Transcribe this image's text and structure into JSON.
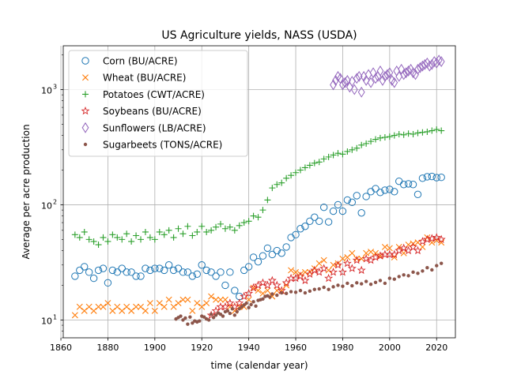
{
  "chart_data": {
    "type": "scatter",
    "title": "US Agriculture yields, NASS (USDA)",
    "xlabel": "time (calendar year)",
    "ylabel": "Average per acre production",
    "yscale": "log",
    "xlim": [
      1861,
      2028
    ],
    "ylim": [
      7,
      2400
    ],
    "grid": true,
    "legend_position": "top-left",
    "x_ticks": [
      1860,
      1880,
      1900,
      1920,
      1940,
      1960,
      1980,
      2000,
      2020
    ],
    "x_tick_labels": [
      "1860",
      "1880",
      "1900",
      "1920",
      "1940",
      "1960",
      "1980",
      "2000",
      "2020"
    ],
    "y_ticks": [
      10,
      100,
      1000
    ],
    "y_tick_labels": [
      "10",
      "10",
      "10"
    ],
    "y_tick_exponents": [
      "1",
      "2",
      "3"
    ],
    "series": [
      {
        "name": "Corn (BU/ACRE)",
        "marker": "circle",
        "color": "#1f77b4",
        "x": [
          1866,
          1868,
          1870,
          1872,
          1874,
          1876,
          1878,
          1880,
          1882,
          1884,
          1886,
          1888,
          1890,
          1892,
          1894,
          1896,
          1898,
          1900,
          1902,
          1904,
          1906,
          1908,
          1910,
          1912,
          1914,
          1916,
          1918,
          1920,
          1922,
          1924,
          1926,
          1928,
          1930,
          1932,
          1934,
          1936,
          1938,
          1940,
          1942,
          1944,
          1946,
          1948,
          1950,
          1952,
          1954,
          1956,
          1958,
          1960,
          1962,
          1964,
          1966,
          1968,
          1970,
          1972,
          1974,
          1976,
          1978,
          1980,
          1982,
          1984,
          1986,
          1988,
          1990,
          1992,
          1994,
          1996,
          1998,
          2000,
          2002,
          2004,
          2006,
          2008,
          2010,
          2012,
          2014,
          2016,
          2018,
          2020,
          2022
        ],
        "values": [
          24,
          27,
          29,
          26,
          23,
          27,
          28,
          21,
          27,
          26,
          28,
          26,
          26,
          24,
          24,
          28,
          27,
          28,
          28,
          27,
          30,
          27,
          28,
          26,
          26,
          24,
          25,
          30,
          27,
          26,
          24,
          26,
          20,
          26,
          18,
          16,
          27,
          29,
          35,
          32,
          36,
          42,
          37,
          40,
          38,
          43,
          52,
          55,
          62,
          65,
          72,
          78,
          72,
          95,
          71,
          88,
          100,
          88,
          110,
          105,
          120,
          85,
          118,
          130,
          138,
          128,
          134,
          136,
          130,
          160,
          150,
          152,
          150,
          123,
          170,
          175,
          176,
          172,
          173
        ]
      },
      {
        "name": "Wheat (BU/ACRE)",
        "marker": "x",
        "color": "#ff7f0e",
        "x": [
          1866,
          1868,
          1870,
          1872,
          1874,
          1876,
          1878,
          1880,
          1882,
          1884,
          1886,
          1888,
          1890,
          1892,
          1894,
          1896,
          1898,
          1900,
          1902,
          1904,
          1906,
          1908,
          1910,
          1912,
          1914,
          1916,
          1918,
          1920,
          1922,
          1924,
          1926,
          1928,
          1930,
          1932,
          1934,
          1936,
          1938,
          1940,
          1942,
          1944,
          1946,
          1948,
          1950,
          1952,
          1954,
          1956,
          1958,
          1960,
          1962,
          1964,
          1966,
          1968,
          1970,
          1972,
          1974,
          1976,
          1978,
          1980,
          1982,
          1984,
          1986,
          1988,
          1990,
          1992,
          1994,
          1996,
          1998,
          2000,
          2002,
          2004,
          2006,
          2008,
          2010,
          2012,
          2014,
          2016,
          2018,
          2020,
          2022
        ],
        "values": [
          11,
          13,
          12,
          13,
          12,
          13,
          13,
          14,
          12,
          13,
          12,
          13,
          12,
          13,
          13,
          12,
          14,
          12,
          14,
          13,
          15,
          13,
          14,
          15,
          15,
          12,
          14,
          13,
          14,
          16,
          15,
          15,
          15,
          13,
          12,
          13,
          13,
          15,
          19,
          18,
          17,
          18,
          16,
          18,
          18,
          20,
          27,
          26,
          25,
          26,
          26,
          28,
          31,
          33,
          27,
          30,
          31,
          34,
          35,
          38,
          34,
          34,
          38,
          39,
          38,
          36,
          43,
          42,
          35,
          43,
          38,
          45,
          46,
          47,
          43,
          52,
          47,
          49,
          47
        ]
      },
      {
        "name": "Potatoes (CWT/ACRE)",
        "marker": "plus",
        "color": "#2ca02c",
        "x": [
          1866,
          1868,
          1870,
          1872,
          1874,
          1876,
          1878,
          1880,
          1882,
          1884,
          1886,
          1888,
          1890,
          1892,
          1894,
          1896,
          1898,
          1900,
          1902,
          1904,
          1906,
          1908,
          1910,
          1912,
          1914,
          1916,
          1918,
          1920,
          1922,
          1924,
          1926,
          1928,
          1930,
          1932,
          1934,
          1936,
          1938,
          1940,
          1942,
          1944,
          1946,
          1948,
          1950,
          1952,
          1954,
          1956,
          1958,
          1960,
          1962,
          1964,
          1966,
          1968,
          1970,
          1972,
          1974,
          1976,
          1978,
          1980,
          1982,
          1984,
          1986,
          1988,
          1990,
          1992,
          1994,
          1996,
          1998,
          2000,
          2002,
          2004,
          2006,
          2008,
          2010,
          2012,
          2014,
          2016,
          2018,
          2020,
          2022
        ],
        "values": [
          55,
          52,
          58,
          50,
          48,
          45,
          52,
          48,
          55,
          52,
          50,
          56,
          48,
          54,
          50,
          58,
          52,
          50,
          58,
          55,
          60,
          52,
          62,
          56,
          65,
          54,
          58,
          65,
          58,
          60,
          64,
          68,
          62,
          64,
          60,
          66,
          70,
          72,
          80,
          78,
          90,
          110,
          140,
          150,
          155,
          170,
          180,
          190,
          200,
          210,
          220,
          230,
          235,
          250,
          260,
          270,
          280,
          275,
          290,
          300,
          310,
          330,
          340,
          355,
          370,
          380,
          385,
          390,
          400,
          410,
          405,
          415,
          410,
          420,
          425,
          430,
          440,
          450,
          440
        ]
      },
      {
        "name": "Soybeans (BU/ACRE)",
        "marker": "star",
        "color": "#d62728",
        "x": [
          1924,
          1926,
          1928,
          1930,
          1932,
          1934,
          1936,
          1938,
          1940,
          1942,
          1944,
          1946,
          1948,
          1950,
          1952,
          1954,
          1956,
          1958,
          1960,
          1962,
          1964,
          1966,
          1968,
          1970,
          1972,
          1974,
          1976,
          1978,
          1980,
          1982,
          1984,
          1986,
          1988,
          1990,
          1992,
          1994,
          1996,
          1998,
          2000,
          2002,
          2004,
          2006,
          2008,
          2010,
          2012,
          2014,
          2016,
          2018,
          2020,
          2022
        ],
        "values": [
          11,
          12,
          13,
          13,
          14,
          13,
          14,
          16,
          17,
          19,
          20,
          21,
          20,
          22,
          20,
          18,
          21,
          23,
          23,
          24,
          22,
          25,
          27,
          26,
          28,
          23,
          26,
          30,
          26,
          31,
          28,
          33,
          27,
          34,
          33,
          35,
          36,
          37,
          37,
          37,
          40,
          42,
          40,
          43,
          40,
          48,
          50,
          51,
          52,
          50
        ]
      },
      {
        "name": "Sunflowers (LB/ACRE)",
        "marker": "diamond",
        "color": "#9467bd",
        "x": [
          1976,
          1977,
          1978,
          1979,
          1980,
          1981,
          1982,
          1983,
          1984,
          1985,
          1986,
          1987,
          1988,
          1989,
          1990,
          1991,
          1992,
          1993,
          1994,
          1995,
          1996,
          1997,
          1998,
          1999,
          2000,
          2001,
          2002,
          2003,
          2004,
          2005,
          2006,
          2007,
          2008,
          2009,
          2010,
          2011,
          2012,
          2013,
          2014,
          2015,
          2016,
          2017,
          2018,
          2019,
          2020,
          2021,
          2022
        ],
        "values": [
          1100,
          1200,
          1300,
          1250,
          1100,
          1150,
          1200,
          1050,
          1180,
          1000,
          1250,
          1300,
          950,
          1300,
          1200,
          1350,
          1150,
          1400,
          1250,
          1300,
          1450,
          1200,
          1300,
          1350,
          1400,
          1200,
          1150,
          1450,
          1300,
          1500,
          1350,
          1400,
          1450,
          1500,
          1400,
          1350,
          1500,
          1550,
          1600,
          1650,
          1700,
          1600,
          1650,
          1750,
          1700,
          1800,
          1750
        ]
      },
      {
        "name": "Sugarbeets (TONS/ACRE)",
        "marker": "dot",
        "color": "#8c564b",
        "x": [
          1909,
          1910,
          1911,
          1912,
          1913,
          1914,
          1915,
          1916,
          1917,
          1918,
          1919,
          1920,
          1921,
          1922,
          1923,
          1924,
          1925,
          1926,
          1927,
          1928,
          1929,
          1930,
          1931,
          1932,
          1933,
          1934,
          1935,
          1936,
          1937,
          1938,
          1939,
          1940,
          1941,
          1942,
          1943,
          1944,
          1945,
          1946,
          1947,
          1948,
          1949,
          1950,
          1952,
          1954,
          1956,
          1958,
          1960,
          1962,
          1964,
          1966,
          1968,
          1970,
          1972,
          1974,
          1976,
          1978,
          1980,
          1982,
          1984,
          1986,
          1988,
          1990,
          1992,
          1994,
          1996,
          1998,
          2000,
          2002,
          2004,
          2006,
          2008,
          2010,
          2012,
          2014,
          2016,
          2018,
          2020,
          2022
        ],
        "values": [
          10.2,
          10.5,
          10.8,
          10.0,
          10.4,
          9.2,
          10.6,
          9.4,
          9.8,
          9.6,
          9.8,
          10.8,
          10.6,
          10.2,
          10.0,
          11.2,
          10.5,
          11.0,
          11.5,
          11.2,
          10.8,
          11.8,
          12.0,
          11.4,
          12.5,
          11.0,
          11.8,
          12.5,
          13.0,
          13.5,
          14.0,
          12.8,
          13.6,
          14.4,
          13.2,
          14.8,
          15.0,
          15.2,
          16.0,
          16.2,
          15.8,
          16.8,
          16.4,
          17.2,
          17.0,
          17.6,
          17.4,
          18.0,
          17.2,
          17.8,
          18.4,
          18.6,
          19.2,
          18.4,
          19.4,
          20.0,
          19.6,
          20.8,
          19.8,
          21.0,
          20.6,
          21.6,
          20.4,
          21.2,
          22.0,
          20.8,
          23.0,
          22.6,
          23.8,
          24.6,
          24.2,
          26.0,
          25.4,
          26.6,
          28.4,
          27.2,
          29.6,
          31.0
        ]
      }
    ]
  }
}
